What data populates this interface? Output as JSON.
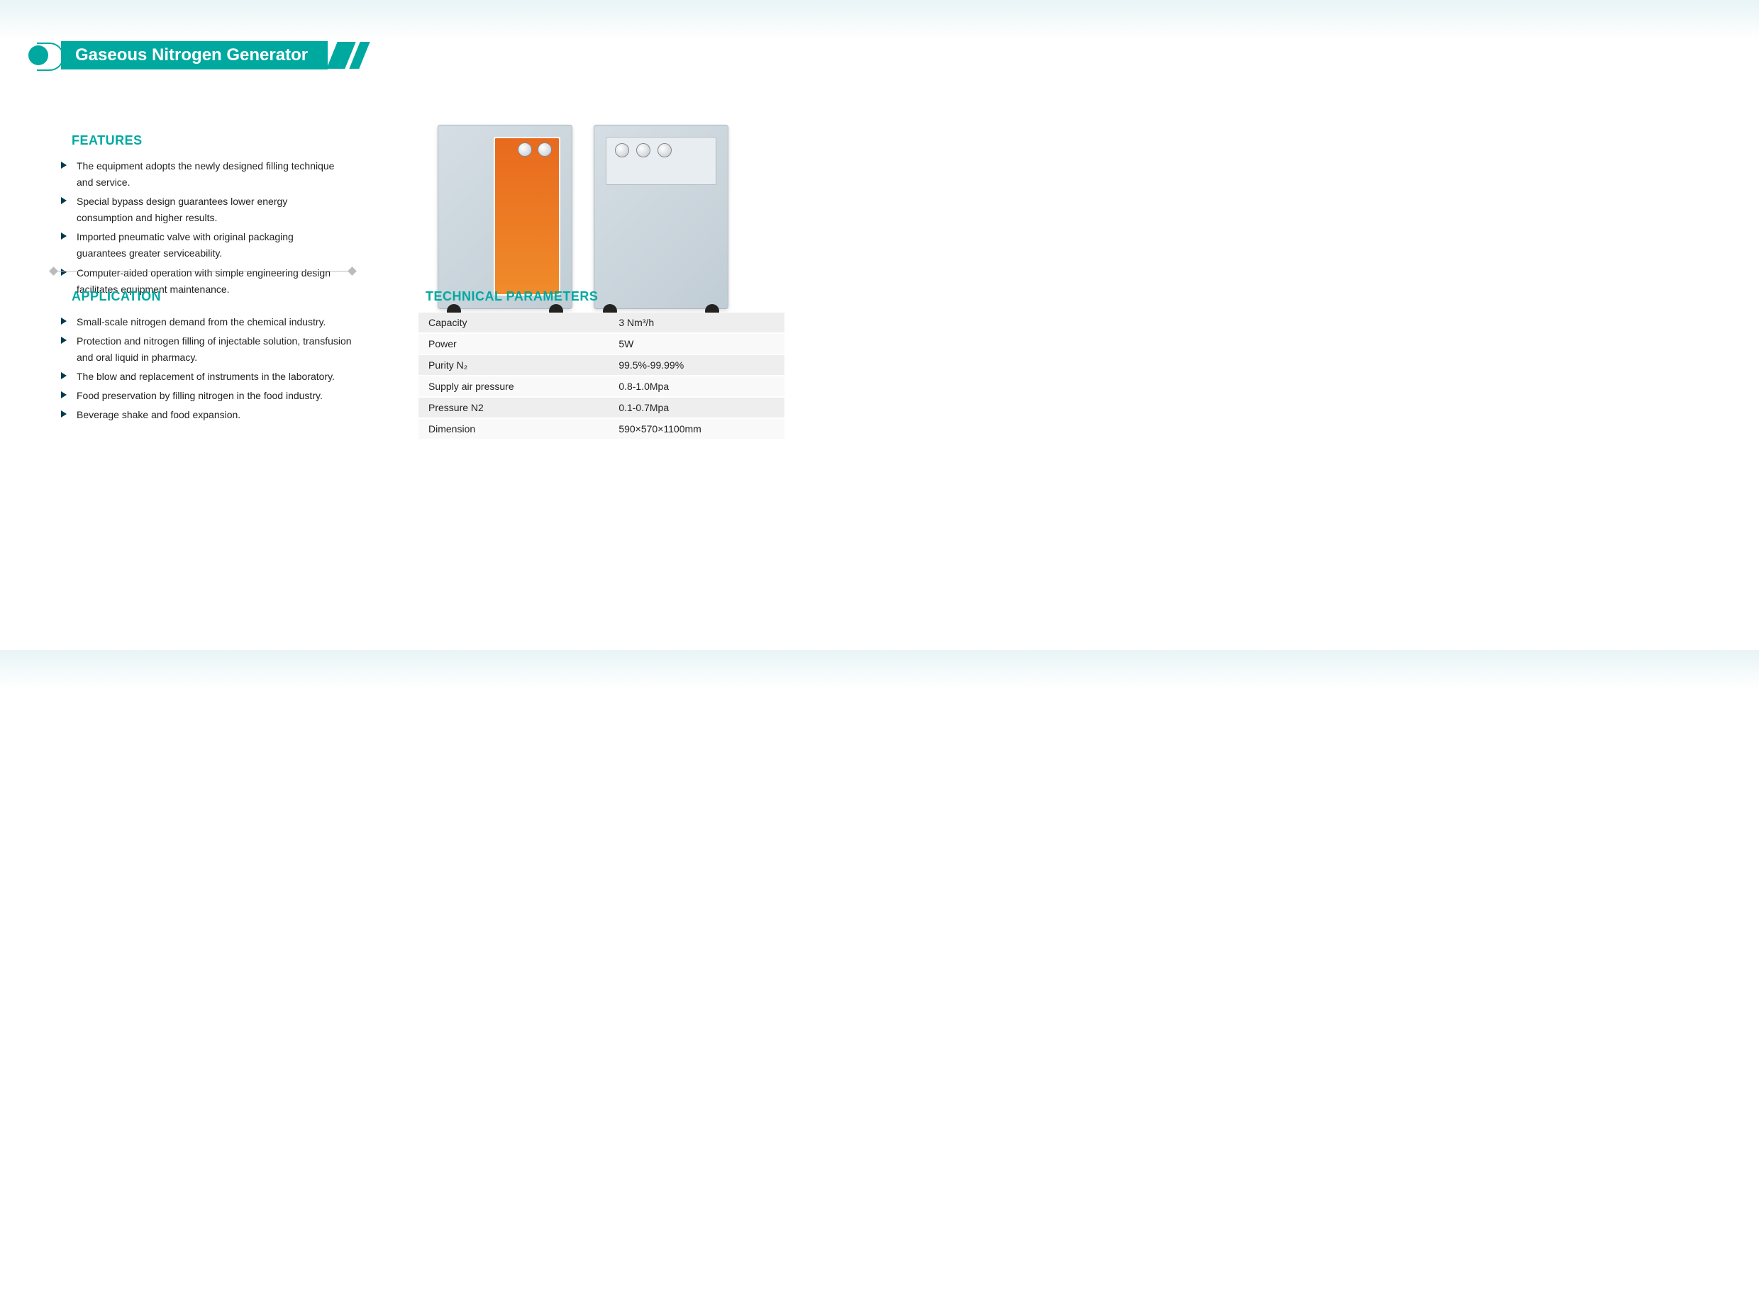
{
  "title": "Gaseous Nitrogen Generator",
  "accent_color": "#00a9a0",
  "bullet_color": "#003a52",
  "text_color": "#222222",
  "table_row_alt_bg": "#eeeeee",
  "table_row_bg": "#f9f9f9",
  "sections": {
    "features": {
      "heading": "FEATURES",
      "items": [
        "The equipment adopts the newly designed filling technique and service.",
        "Special bypass design guarantees lower energy consumption and higher results.",
        "Imported pneumatic valve with original packaging guarantees greater serviceability.",
        "Computer-aided operation with simple engineering design facilitates equipment maintenance."
      ]
    },
    "application": {
      "heading": "APPLICATION",
      "items": [
        "Small-scale nitrogen demand from the chemical industry.",
        "Protection and nitrogen filling of injectable solution, transfusion and oral liquid in pharmacy.",
        "The blow and replacement of instruments in the laboratory.",
        "Food preservation by filling nitrogen in the food industry.",
        "Beverage shake and food expansion."
      ]
    },
    "technical": {
      "heading": "TECHNICAL PARAMETERS",
      "rows": [
        {
          "label": "Capacity",
          "value": "3 Nm³/h"
        },
        {
          "label": "Power",
          "value": "5W"
        },
        {
          "label": "Purity N₂",
          "value": "99.5%-99.99%"
        },
        {
          "label": "Supply air pressure",
          "value": "0.8-1.0Mpa"
        },
        {
          "label": "Pressure N2",
          "value": "0.1-0.7Mpa"
        },
        {
          "label": "Dimension",
          "value": "590×570×1100mm"
        }
      ]
    }
  },
  "images": {
    "left_machine": "nitrogen-generator-orange-panel",
    "right_machine": "nitrogen-generator-gray-cabinet"
  }
}
